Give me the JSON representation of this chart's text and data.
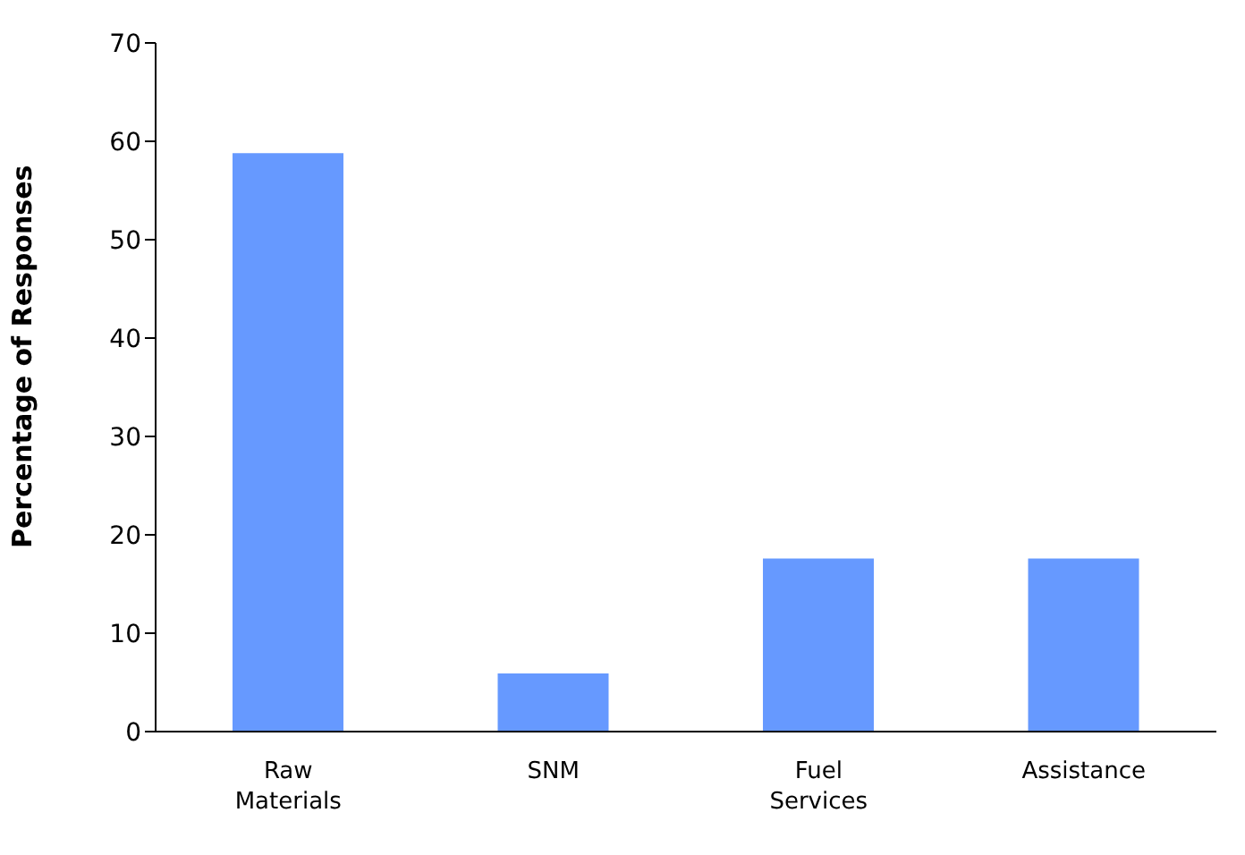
{
  "chart_data": {
    "type": "bar",
    "ylabel": "Percentage of Responses",
    "categories": [
      "Raw Materials",
      "SNM",
      "Fuel Services",
      "Assistance"
    ],
    "values": [
      58.8,
      5.9,
      17.6,
      17.6
    ],
    "color": "#6699ff",
    "ylim": [
      0,
      70
    ],
    "yticks": [
      0,
      10,
      20,
      30,
      40,
      50,
      60,
      70
    ],
    "grid": false,
    "legend": false
  }
}
